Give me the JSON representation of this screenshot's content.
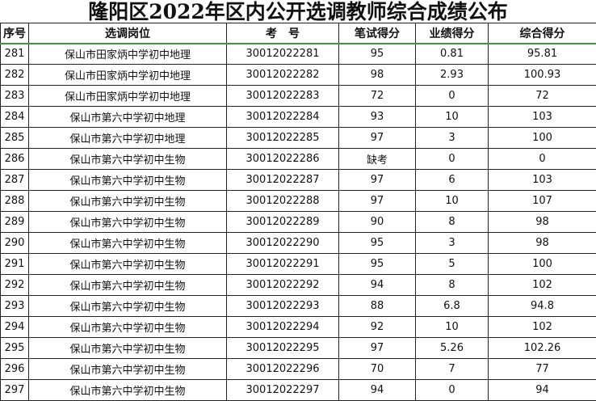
{
  "title": "隆阳区2022年区内公开选调教师综合成绩公布",
  "columns": [
    "序号",
    "选调岗位",
    "考　号",
    "笔试得分",
    "业绩得分",
    "综合得分"
  ],
  "rows": [
    [
      "281",
      "保山市田家炳中学初中地理",
      "30012022281",
      "95",
      "0.81",
      "95.81"
    ],
    [
      "282",
      "保山市田家炳中学初中地理",
      "30012022282",
      "98",
      "2.93",
      "100.93"
    ],
    [
      "283",
      "保山市田家炳中学初中地理",
      "30012022283",
      "72",
      "0",
      "72"
    ],
    [
      "284",
      "保山市第六中学初中地理",
      "30012022284",
      "93",
      "10",
      "103"
    ],
    [
      "285",
      "保山市第六中学初中地理",
      "30012022285",
      "97",
      "3",
      "100"
    ],
    [
      "286",
      "保山市第六中学初中生物",
      "30012022286",
      "缺考",
      "0",
      "0"
    ],
    [
      "287",
      "保山市第六中学初中生物",
      "30012022287",
      "97",
      "6",
      "103"
    ],
    [
      "288",
      "保山市第六中学初中生物",
      "30012022288",
      "97",
      "10",
      "107"
    ],
    [
      "289",
      "保山市第六中学初中生物",
      "30012022289",
      "90",
      "8",
      "98"
    ],
    [
      "290",
      "保山市第六中学初中生物",
      "30012022290",
      "95",
      "3",
      "98"
    ],
    [
      "291",
      "保山市第六中学初中生物",
      "30012022291",
      "95",
      "5",
      "100"
    ],
    [
      "292",
      "保山市第六中学初中生物",
      "30012022292",
      "94",
      "8",
      "102"
    ],
    [
      "293",
      "保山市第六中学初中生物",
      "30012022293",
      "88",
      "6.8",
      "94.8"
    ],
    [
      "294",
      "保山市第六中学初中生物",
      "30012022294",
      "92",
      "10",
      "102"
    ],
    [
      "295",
      "保山市第六中学初中生物",
      "30012022295",
      "97",
      "5.26",
      "102.26"
    ],
    [
      "296",
      "保山市第六中学初中生物",
      "30012022296",
      "70",
      "7",
      "77"
    ],
    [
      "297",
      "保山市第六中学初中生物",
      "30012022297",
      "94",
      "0",
      "94"
    ]
  ]
}
